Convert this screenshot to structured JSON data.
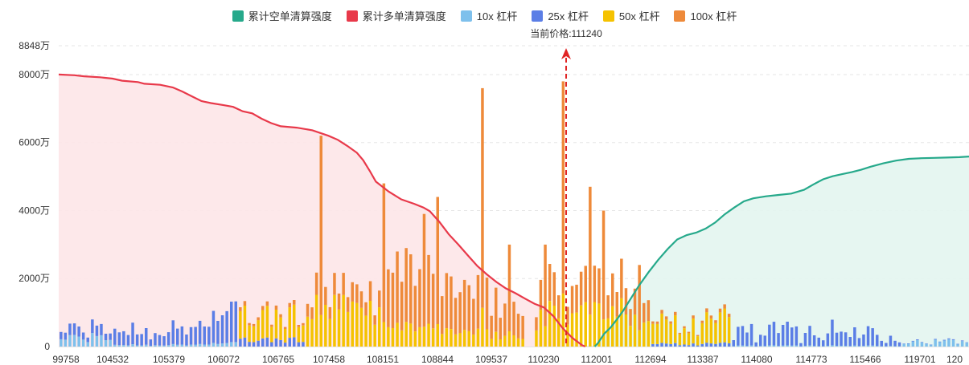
{
  "legend": [
    {
      "label": "累计空单清算强度",
      "color": "#26a98b"
    },
    {
      "label": "累计多单清算强度",
      "color": "#e8394a"
    },
    {
      "label": "10x 杠杆",
      "color": "#7ec0ec"
    },
    {
      "label": "25x 杠杆",
      "color": "#5b7ee6"
    },
    {
      "label": "50x 杠杆",
      "color": "#f5c200"
    },
    {
      "label": "100x 杠杆",
      "color": "#ee8a3a"
    }
  ],
  "chart_data": {
    "type": "bar",
    "current_price_label": "当前价格:111240",
    "current_price": 111240,
    "y_ticks": [
      {
        "value": 0,
        "label": "0"
      },
      {
        "value": 20000000,
        "label": "2000万"
      },
      {
        "value": 40000000,
        "label": "4000万"
      },
      {
        "value": 60000000,
        "label": "6000万"
      },
      {
        "value": 80000000,
        "label": "8000万"
      },
      {
        "value": 88480000,
        "label": "8848万"
      }
    ],
    "ylim": [
      0,
      88480000
    ],
    "x_ticks": [
      "99758",
      "104532",
      "105379",
      "106072",
      "106765",
      "107458",
      "108151",
      "108844",
      "109537",
      "110230",
      "112001",
      "112694",
      "113387",
      "114080",
      "114773",
      "115466",
      "119701",
      "120"
    ],
    "bar_count": 203,
    "current_price_bar_index": 104,
    "colors": {
      "10x": "#7ec0ec",
      "25x": "#5b7ee6",
      "50x": "#f5c200",
      "100x": "#ee8a3a",
      "long_line": "#e8394a",
      "long_fill": "#fde6e8",
      "short_line": "#26a98b",
      "short_fill": "#e3f5ef"
    },
    "long_cumulative": [
      [
        0,
        80000000
      ],
      [
        5,
        79800000
      ],
      [
        8,
        79500000
      ],
      [
        13,
        79200000
      ],
      [
        17,
        78800000
      ],
      [
        20,
        78200000
      ],
      [
        25,
        77800000
      ],
      [
        27,
        77300000
      ],
      [
        32,
        77000000
      ],
      [
        36,
        76200000
      ],
      [
        39,
        75000000
      ],
      [
        42,
        73600000
      ],
      [
        45,
        72200000
      ],
      [
        48,
        71600000
      ],
      [
        52,
        71000000
      ],
      [
        55,
        70500000
      ],
      [
        58,
        69200000
      ],
      [
        61,
        68600000
      ],
      [
        64,
        67000000
      ],
      [
        67,
        65700000
      ],
      [
        70,
        64800000
      ],
      [
        75,
        64400000
      ],
      [
        80,
        63600000
      ],
      [
        85,
        62000000
      ],
      [
        88,
        60800000
      ],
      [
        91,
        59000000
      ],
      [
        94,
        57000000
      ],
      [
        96,
        54800000
      ],
      [
        98,
        51800000
      ],
      [
        100,
        48500000
      ],
      [
        104,
        45600000
      ],
      [
        108,
        43300000
      ],
      [
        112,
        42000000
      ],
      [
        115,
        40900000
      ],
      [
        117,
        39800000
      ],
      [
        120,
        36700000
      ],
      [
        123,
        33000000
      ],
      [
        126,
        30000000
      ],
      [
        129,
        26800000
      ],
      [
        132,
        23700000
      ],
      [
        135,
        21200000
      ],
      [
        138,
        19000000
      ],
      [
        141,
        17100000
      ],
      [
        144,
        15700000
      ],
      [
        147,
        14100000
      ],
      [
        150,
        12600000
      ],
      [
        153,
        11500000
      ],
      [
        156,
        8900000
      ],
      [
        159,
        5300000
      ],
      [
        162,
        2500000
      ],
      [
        165,
        400000
      ],
      [
        166,
        0
      ]
    ],
    "short_cumulative": [
      [
        169,
        0
      ],
      [
        170,
        1000000
      ],
      [
        172,
        3800000
      ],
      [
        174,
        5600000
      ],
      [
        176,
        8000000
      ],
      [
        178,
        10600000
      ],
      [
        180,
        13600000
      ],
      [
        183,
        18000000
      ],
      [
        186,
        21900000
      ],
      [
        189,
        25500000
      ],
      [
        192,
        28700000
      ],
      [
        195,
        31500000
      ],
      [
        198,
        32800000
      ],
      [
        201,
        33500000
      ],
      [
        204,
        34700000
      ],
      [
        207,
        36500000
      ],
      [
        210,
        38900000
      ],
      [
        213,
        40900000
      ],
      [
        216,
        42700000
      ],
      [
        219,
        43600000
      ],
      [
        223,
        44200000
      ],
      [
        227,
        44600000
      ],
      [
        231,
        45000000
      ],
      [
        235,
        46100000
      ],
      [
        238,
        47700000
      ],
      [
        241,
        49200000
      ],
      [
        244,
        50100000
      ],
      [
        247,
        50700000
      ],
      [
        250,
        51300000
      ],
      [
        253,
        52000000
      ],
      [
        256,
        52900000
      ],
      [
        260,
        53900000
      ],
      [
        264,
        54700000
      ],
      [
        268,
        55200000
      ],
      [
        272,
        55400000
      ],
      [
        276,
        55500000
      ],
      [
        280,
        55600000
      ],
      [
        284,
        55700000
      ],
      [
        287,
        55900000
      ]
    ]
  }
}
